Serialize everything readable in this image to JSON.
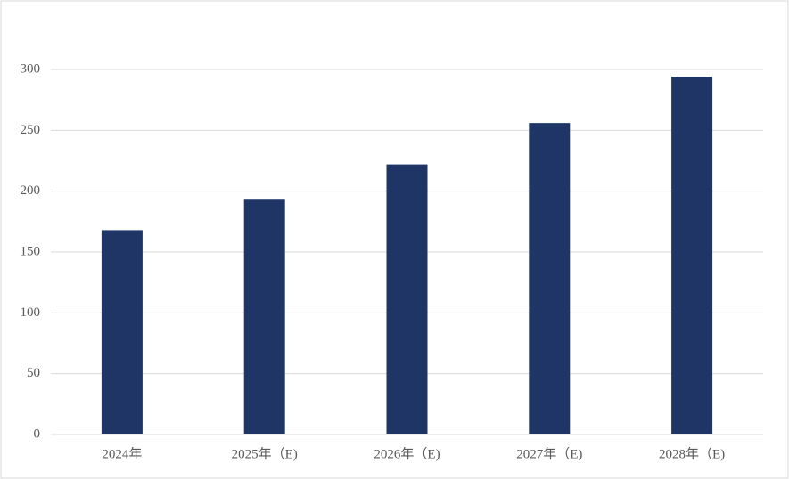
{
  "chart_data": {
    "type": "bar",
    "categories": [
      "2024年",
      "2025年（E)",
      "2026年（E)",
      "2027年（E)",
      "2028年（E)"
    ],
    "values": [
      168,
      193,
      222,
      256,
      294
    ],
    "color": "#1f3566",
    "ylim": [
      0,
      300
    ],
    "yticks": [
      0,
      50,
      100,
      150,
      200,
      250,
      300
    ],
    "grid": true
  }
}
